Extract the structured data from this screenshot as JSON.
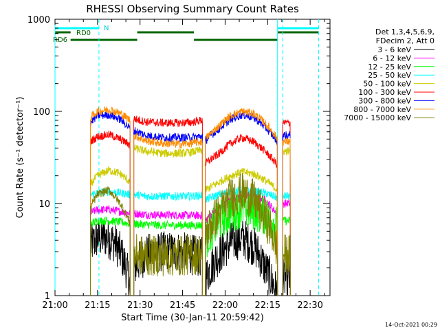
{
  "chart_data": {
    "type": "line",
    "title": "RHESSI Observing Summary Count Rates",
    "xlabel": "Start Time (30-Jan-11 20:59:42)",
    "ylabel": "Count Rate (s⁻¹ detector⁻¹)",
    "y_scale": "log",
    "ylim": [
      1,
      1000
    ],
    "x_units": "minutes since 21:00",
    "xlim": [
      0,
      97
    ],
    "x_tick_labels": [
      "21:00",
      "21:15",
      "21:30",
      "21:45",
      "22:00",
      "22:15",
      "22:30"
    ],
    "x_tick_values": [
      0,
      15,
      30,
      45,
      60,
      75,
      90
    ],
    "y_tick_labels": [
      "1",
      "10",
      "100",
      "1000"
    ],
    "y_tick_values": [
      1,
      10,
      100,
      1000
    ],
    "legend_header": [
      "Det 1,3,4,5,6,9,",
      "FDecim 2, Att 0"
    ],
    "legend_position": "right",
    "timestamp": "14-Oct-2021 00:29",
    "data_gaps": [
      [
        0,
        12.5
      ],
      [
        26.5,
        27.8
      ],
      [
        52.0,
        53.0
      ],
      [
        78.5,
        80.3
      ]
    ],
    "series": [
      {
        "name": "3 - 6 keV",
        "color": "#000000",
        "segments": [
          {
            "x": [
              12.5,
              15,
              18,
              21,
              24,
              26.5
            ],
            "y": [
              3.5,
              4.2,
              4.3,
              3.8,
              2.5,
              1.3
            ]
          },
          {
            "x": [
              27.8,
              32,
              38,
              44,
              48,
              52
            ],
            "y": [
              2.0,
              2.8,
              3.0,
              3.0,
              2.8,
              2.6
            ]
          },
          {
            "x": [
              53,
              58,
              62,
              66,
              70,
              74,
              78.5
            ],
            "y": [
              1.5,
              2.8,
              3.8,
              4.2,
              3.5,
              2.0,
              1.0
            ]
          },
          {
            "x": [
              80.3,
              83
            ],
            "y": [
              1.5,
              1.5
            ]
          }
        ]
      },
      {
        "name": "6 - 12 keV",
        "color": "#ff00ff",
        "segments": [
          {
            "x": [
              12.5,
              15,
              19,
              23,
              26.5
            ],
            "y": [
              8.0,
              8.5,
              8.6,
              8.2,
              7.8
            ]
          },
          {
            "x": [
              27.8,
              32,
              38,
              44,
              48,
              52
            ],
            "y": [
              7.8,
              7.6,
              7.5,
              7.5,
              7.4,
              7.4
            ]
          },
          {
            "x": [
              53,
              58,
              62,
              66,
              70,
              74,
              78.5
            ],
            "y": [
              6.5,
              9.0,
              11.0,
              12.5,
              12.5,
              11.0,
              7.5
            ]
          },
          {
            "x": [
              80.3,
              83
            ],
            "y": [
              10.0,
              10.0
            ]
          }
        ]
      },
      {
        "name": "12 - 25 keV",
        "color": "#00ff00",
        "segments": [
          {
            "x": [
              12.5,
              15,
              19,
              23,
              26.5
            ],
            "y": [
              6.0,
              6.5,
              6.5,
              6.3,
              6.0
            ]
          },
          {
            "x": [
              27.8,
              32,
              38,
              44,
              48,
              52
            ],
            "y": [
              6.0,
              5.9,
              5.8,
              5.8,
              5.8,
              5.8
            ]
          },
          {
            "x": [
              53,
              58,
              62,
              66,
              70,
              74,
              78.5
            ],
            "y": [
              4.0,
              6.5,
              8.0,
              9.0,
              8.5,
              7.5,
              5.5
            ]
          },
          {
            "x": [
              80.3,
              83
            ],
            "y": [
              6.5,
              6.5
            ]
          }
        ]
      },
      {
        "name": "25 - 50 keV",
        "color": "#00ffff",
        "segments": [
          {
            "x": [
              12.5,
              15,
              19,
              23,
              26.5
            ],
            "y": [
              12.5,
              13.0,
              13.5,
              13.0,
              12.5
            ]
          },
          {
            "x": [
              27.8,
              32,
              38,
              44,
              48,
              52
            ],
            "y": [
              12.5,
              12.0,
              12.0,
              12.0,
              12.0,
              12.3
            ]
          },
          {
            "x": [
              53,
              58,
              62,
              66,
              70,
              74,
              78.5
            ],
            "y": [
              11.0,
              12.5,
              13.5,
              14.0,
              13.5,
              13.0,
              11.5
            ]
          },
          {
            "x": [
              80.3,
              83
            ],
            "y": [
              12.0,
              12.0
            ]
          }
        ]
      },
      {
        "name": "50 - 100 keV",
        "color": "#cccc00",
        "segments": [
          {
            "x": [
              12.5,
              15,
              19,
              23,
              26.5
            ],
            "y": [
              16.0,
              20.0,
              23.0,
              21.0,
              17.0
            ]
          },
          {
            "x": [
              27.8,
              32,
              38,
              44,
              48,
              52
            ],
            "y": [
              40.0,
              37.0,
              35.0,
              35.0,
              36.0,
              38.0
            ]
          },
          {
            "x": [
              53,
              58,
              62,
              66,
              70,
              74,
              78.5
            ],
            "y": [
              14.0,
              17.0,
              20.0,
              22.0,
              21.0,
              18.0,
              14.0
            ]
          },
          {
            "x": [
              80.3,
              83
            ],
            "y": [
              37.0,
              37.0
            ]
          }
        ]
      },
      {
        "name": "100 - 300 keV",
        "color": "#ff0000",
        "segments": [
          {
            "x": [
              12.5,
              15,
              19,
              23,
              26.5
            ],
            "y": [
              47.0,
              53.0,
              56.0,
              50.0,
              43.0
            ]
          },
          {
            "x": [
              27.8,
              32,
              38,
              44,
              48,
              52
            ],
            "y": [
              83.0,
              77.0,
              75.0,
              75.0,
              76.0,
              80.0
            ]
          },
          {
            "x": [
              53,
              58,
              62,
              66,
              70,
              74,
              78.5
            ],
            "y": [
              27.0,
              35.0,
              45.0,
              52.0,
              47.0,
              37.0,
              26.0
            ]
          },
          {
            "x": [
              80.3,
              83
            ],
            "y": [
              75.0,
              75.0
            ]
          }
        ]
      },
      {
        "name": "300 - 800 keV",
        "color": "#0000ff",
        "segments": [
          {
            "x": [
              12.5,
              15,
              19,
              23,
              26.5
            ],
            "y": [
              75.0,
              90.0,
              92.0,
              82.0,
              65.0
            ]
          },
          {
            "x": [
              27.8,
              32,
              38,
              44,
              48,
              52
            ],
            "y": [
              62.0,
              55.0,
              52.0,
              52.0,
              52.0,
              54.0
            ]
          },
          {
            "x": [
              53,
              58,
              62,
              66,
              70,
              74,
              78.5
            ],
            "y": [
              48.0,
              65.0,
              82.0,
              92.0,
              86.0,
              68.0,
              47.0
            ]
          },
          {
            "x": [
              80.3,
              83
            ],
            "y": [
              55.0,
              55.0
            ]
          }
        ]
      },
      {
        "name": "800 - 7000 keV",
        "color": "#ff8c00",
        "segments": [
          {
            "x": [
              12.5,
              15,
              19,
              23,
              26.5
            ],
            "y": [
              85.0,
              100.0,
              105.0,
              95.0,
              80.0
            ]
          },
          {
            "x": [
              27.8,
              32,
              38,
              44,
              48,
              52
            ],
            "y": [
              55.0,
              48.0,
              45.0,
              44.0,
              45.0,
              47.0
            ]
          },
          {
            "x": [
              53,
              58,
              62,
              66,
              70,
              74,
              78.5
            ],
            "y": [
              50.0,
              70.0,
              90.0,
              100.0,
              95.0,
              75.0,
              50.0
            ]
          },
          {
            "x": [
              80.3,
              83
            ],
            "y": [
              47.0,
              47.0
            ]
          }
        ]
      },
      {
        "name": "7000 - 15000 keV",
        "color": "#808000",
        "segments": [
          {
            "x": [
              12.5,
              15,
              19,
              23,
              26.5
            ],
            "y": [
              9.0,
              12.5,
              14.0,
              10.0,
              6.0
            ]
          },
          {
            "x": [
              27.8,
              32,
              38,
              44,
              48,
              52
            ],
            "y": [
              2.8,
              2.7,
              2.7,
              2.7,
              2.8,
              2.8
            ]
          },
          {
            "x": [
              53,
              58,
              62,
              66,
              70,
              74,
              78.5
            ],
            "y": [
              4.5,
              8.0,
              11.5,
              13.0,
              11.0,
              7.0,
              3.0
            ]
          },
          {
            "x": [
              80.3,
              83
            ],
            "y": [
              2.8,
              2.8
            ]
          }
        ]
      }
    ],
    "status_bars": [
      {
        "label": "N",
        "color": "#00ffff",
        "segments": [
          [
            0,
            15.5
          ],
          [
            78.5,
            93
          ]
        ]
      },
      {
        "label": "RD0",
        "color": "#006400",
        "segments": [
          [
            0,
            5.5
          ],
          [
            29,
            49
          ],
          [
            78.5,
            93
          ]
        ]
      },
      {
        "label": "RD6",
        "color": "#006400",
        "segments": [
          [
            5.5,
            29
          ],
          [
            49,
            78.5
          ]
        ]
      }
    ],
    "vertical_markers": [
      {
        "x": 0,
        "style": "solid"
      },
      {
        "x": 15.5,
        "style": "dashed"
      },
      {
        "x": 78.5,
        "style": "solid"
      },
      {
        "x": 80.3,
        "style": "dashed"
      },
      {
        "x": 93,
        "style": "dashed"
      }
    ]
  }
}
